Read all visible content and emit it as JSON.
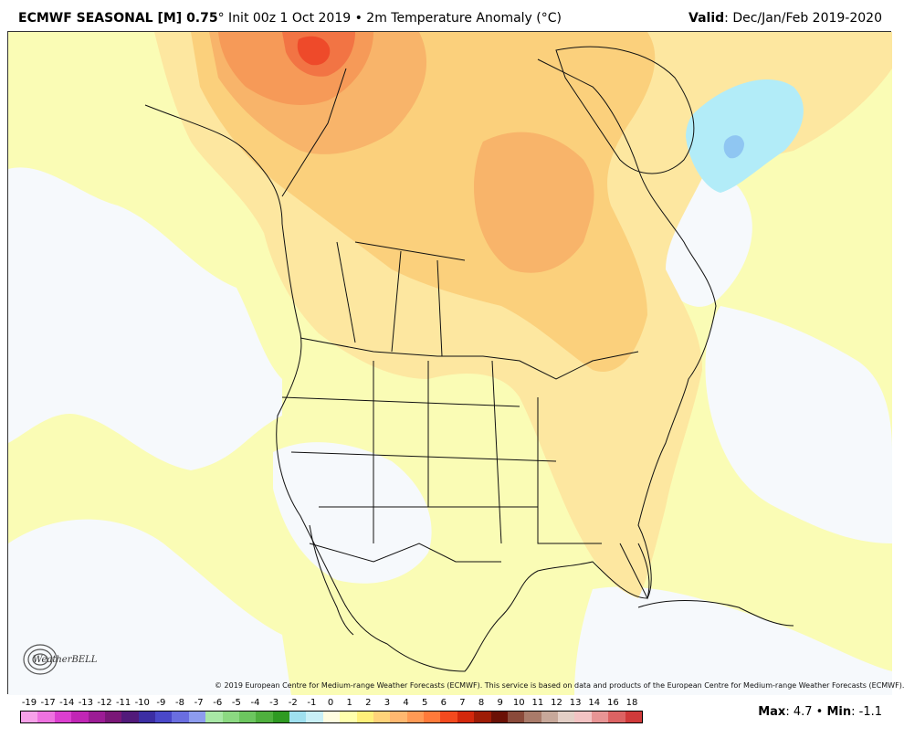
{
  "header": {
    "model": "ECMWF SEASONAL [M] 0.75",
    "degree": "°",
    "init": " Init 00z 1 Oct 2019 • 2m Temperature Anomaly (",
    "unit": "°C",
    "close": ")",
    "valid_label": "Valid",
    "valid_value": ": Dec/Jan/Feb 2019-2020"
  },
  "copyright": "© 2019 European Centre for Medium-range Weather Forecasts (ECMWF). This service is based on data and products of the European Centre for Medium-range Weather Forecasts (ECMWF).",
  "logo": {
    "text": "WeatherBELL"
  },
  "stats": {
    "max_label": "Max",
    "max_value": ": 4.7 • ",
    "min_label": "Min",
    "min_value": ": -1.1"
  },
  "colorbar": {
    "labels": [
      "-19",
      "-17",
      "-14",
      "-13",
      "-12",
      "-11",
      "-10",
      "-9",
      "-8",
      "-7",
      "-6",
      "-5",
      "-4",
      "-3",
      "-2",
      "-1",
      "0",
      "1",
      "2",
      "3",
      "4",
      "5",
      "6",
      "7",
      "8",
      "9",
      "10",
      "11",
      "12",
      "13",
      "14",
      "16",
      "18"
    ],
    "colors": [
      "#f7a1e9",
      "#ee72e0",
      "#dc3fd0",
      "#c126b5",
      "#9c1c95",
      "#7a1777",
      "#521a7a",
      "#3c2ea3",
      "#4a48c9",
      "#6a6ee0",
      "#8d9cee",
      "#a8e7a6",
      "#8cd982",
      "#6cc65f",
      "#4fb03e",
      "#2f9a22",
      "#9fe0ef",
      "#c9f0f7",
      "#fffde0",
      "#ffffad",
      "#fff07a",
      "#ffd37a",
      "#ffb870",
      "#ff9a55",
      "#ff7a3a",
      "#f44a1e",
      "#d3280c",
      "#9e1c06",
      "#6b1106",
      "#8a4a3a",
      "#a97b6a",
      "#c7a89a",
      "#e3cfc6",
      "#f2c3c3",
      "#e89595",
      "#dc6363",
      "#d03a3a"
    ]
  },
  "map_colors": {
    "ocean_base": "#fafcb5",
    "neutral": "#f6f9fc",
    "warm1": "#fde7a0",
    "warm2": "#fbd07c",
    "warm3": "#f8b46a",
    "warm4": "#f69a58",
    "warm5": "#f27444",
    "warm6": "#ee4a2a",
    "cold1": "#b2ecf8",
    "cold2": "#8fc6f2",
    "line": "#111111"
  }
}
